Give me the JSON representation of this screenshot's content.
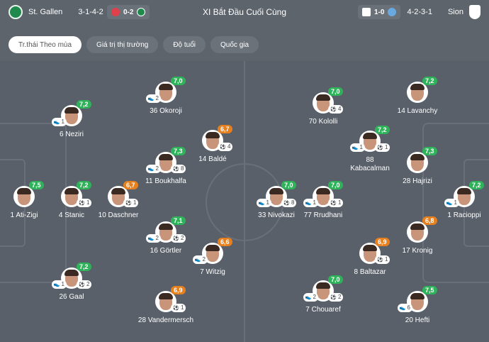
{
  "header": {
    "title": "XI Bắt Đầu Cuối Cùng",
    "home": {
      "name": "St. Gallen",
      "formation": "3-1-4-2",
      "logo_text": "FSG",
      "last_score": "0-2"
    },
    "away": {
      "name": "Sion",
      "formation": "4-2-3-1",
      "logo_text": "FCS",
      "last_score": "1-0"
    }
  },
  "tabs": [
    {
      "label": "Tr.thái Theo mùa",
      "active": true
    },
    {
      "label": "Giá trị thị trường"
    },
    {
      "label": "Độ tuổi"
    },
    {
      "label": "Quốc gia"
    }
  ],
  "colors": {
    "green": "#2fb35a",
    "orange": "#e6801e",
    "pitch": "#596069"
  },
  "icons": {
    "boot": "boot-icon",
    "ball": "ball-icon"
  },
  "players": [
    {
      "team": "home",
      "number": "36",
      "name": "Okoroji",
      "rating": "7,0",
      "color": "green",
      "boots": "2"
    },
    {
      "team": "home",
      "number": "6",
      "name": "Neziri",
      "rating": "7,2",
      "color": "green",
      "boots": "1"
    },
    {
      "team": "home",
      "number": "14",
      "name": "Baldé",
      "rating": "6,7",
      "color": "orange",
      "goals": "4"
    },
    {
      "team": "home",
      "number": "11",
      "name": "Boukhalfa",
      "rating": "7,3",
      "color": "green",
      "boots": "2",
      "goals": "8"
    },
    {
      "team": "home",
      "number": "1",
      "name": "Ati-Zigi",
      "rating": "7,5",
      "color": "green"
    },
    {
      "team": "home",
      "number": "4",
      "name": "Stanic",
      "rating": "7,2",
      "color": "green",
      "goals": "1"
    },
    {
      "team": "home",
      "number": "10",
      "name": "Daschner",
      "rating": "6,7",
      "color": "orange",
      "goals": "1"
    },
    {
      "team": "home",
      "number": "16",
      "name": "Görtler",
      "rating": "7,1",
      "color": "green",
      "boots": "2",
      "goals": "2"
    },
    {
      "team": "home",
      "number": "7",
      "name": "Witzig",
      "rating": "6,6",
      "color": "orange",
      "boots": "2"
    },
    {
      "team": "home",
      "number": "26",
      "name": "Gaal",
      "rating": "7,2",
      "color": "green",
      "boots": "1",
      "goals": "2"
    },
    {
      "team": "home",
      "number": "28",
      "name": "Vandermersch",
      "rating": "6,9",
      "color": "orange",
      "goals": "1"
    },
    {
      "team": "away",
      "number": "70",
      "name": "Kololli",
      "rating": "7,0",
      "color": "green",
      "goals": "4"
    },
    {
      "team": "away",
      "number": "14",
      "name": "Lavanchy",
      "rating": "7,2",
      "color": "green"
    },
    {
      "team": "away",
      "number": "88",
      "name": "Kabacalman",
      "rating": "7,2",
      "color": "green",
      "boots": "1",
      "goals": "1"
    },
    {
      "team": "away",
      "number": "28",
      "name": "Hajrizi",
      "rating": "7,3",
      "color": "green"
    },
    {
      "team": "away",
      "number": "33",
      "name": "Nivokazi",
      "rating": "7,0",
      "color": "green",
      "boots": "1",
      "goals": "8"
    },
    {
      "team": "away",
      "number": "77",
      "name": "Rrudhani",
      "rating": "7,0",
      "color": "green",
      "boots": "1",
      "goals": "1"
    },
    {
      "team": "away",
      "number": "1",
      "name": "Racioppi",
      "rating": "7,2",
      "color": "green",
      "boots": "1"
    },
    {
      "team": "away",
      "number": "17",
      "name": "Kronig",
      "rating": "6,8",
      "color": "orange"
    },
    {
      "team": "away",
      "number": "8",
      "name": "Baltazar",
      "rating": "6,9",
      "color": "orange",
      "goals": "1"
    },
    {
      "team": "away",
      "number": "7",
      "name": "Chouaref",
      "rating": "7,0",
      "color": "green",
      "boots": "2",
      "goals": "2"
    },
    {
      "team": "away",
      "number": "20",
      "name": "Hefti",
      "rating": "7,5",
      "color": "green",
      "boots": "6"
    }
  ]
}
